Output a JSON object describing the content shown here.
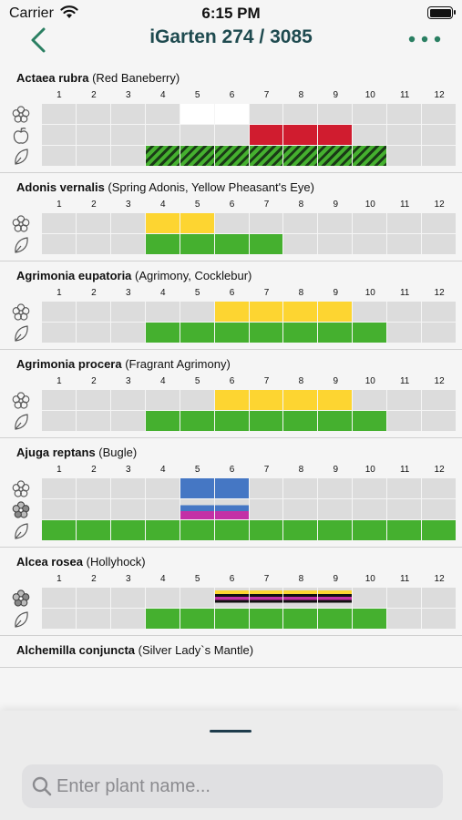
{
  "status_bar": {
    "carrier": "Carrier",
    "time": "6:15 PM"
  },
  "nav": {
    "title": "iGarten 274 / 3085"
  },
  "months": [
    "1",
    "2",
    "3",
    "4",
    "5",
    "6",
    "7",
    "8",
    "9",
    "10",
    "11",
    "12"
  ],
  "colors": {
    "accent": "#2a7f62",
    "title": "#1e4a4f",
    "cell_empty": "#dcdcdc",
    "red": "#d01c2f",
    "yellow": "#fdd531",
    "green": "#45b02f",
    "blue": "#4577c4",
    "magenta": "#c330a6"
  },
  "plants": [
    {
      "latin": "Actaea rubra",
      "common": " (Red Baneberry)",
      "rows": [
        {
          "icon": "flower-outline-icon",
          "cells": [
            "",
            "",
            "",
            "",
            "white",
            "white",
            "",
            "",
            "",
            "",
            "",
            ""
          ]
        },
        {
          "icon": "fruit-icon",
          "cells": [
            "",
            "",
            "",
            "",
            "",
            "",
            "red",
            "red",
            "red",
            "",
            "",
            ""
          ]
        },
        {
          "icon": "leaf-icon",
          "cells": [
            "",
            "",
            "",
            "hatch",
            "hatch",
            "hatch",
            "hatch",
            "hatch",
            "hatch",
            "hatch",
            "",
            ""
          ]
        }
      ]
    },
    {
      "latin": "Adonis vernalis",
      "common": " (Spring Adonis, Yellow Pheasant's Eye)",
      "rows": [
        {
          "icon": "flower-outline-icon",
          "cells": [
            "",
            "",
            "",
            "yellow",
            "yellow",
            "",
            "",
            "",
            "",
            "",
            "",
            ""
          ]
        },
        {
          "icon": "leaf-icon",
          "cells": [
            "",
            "",
            "",
            "green",
            "green",
            "green",
            "green",
            "",
            "",
            "",
            "",
            ""
          ]
        }
      ]
    },
    {
      "latin": "Agrimonia eupatoria",
      "common": " (Agrimony, Cocklebur)",
      "rows": [
        {
          "icon": "flower-outline-icon",
          "cells": [
            "",
            "",
            "",
            "",
            "",
            "yellow",
            "yellow",
            "yellow",
            "yellow",
            "",
            "",
            ""
          ]
        },
        {
          "icon": "leaf-icon",
          "cells": [
            "",
            "",
            "",
            "green",
            "green",
            "green",
            "green",
            "green",
            "green",
            "green",
            "",
            ""
          ]
        }
      ]
    },
    {
      "latin": "Agrimonia procera",
      "common": " (Fragrant Agrimony)",
      "rows": [
        {
          "icon": "flower-outline-icon",
          "cells": [
            "",
            "",
            "",
            "",
            "",
            "yellow",
            "yellow",
            "yellow",
            "yellow",
            "",
            "",
            ""
          ]
        },
        {
          "icon": "leaf-icon",
          "cells": [
            "",
            "",
            "",
            "green",
            "green",
            "green",
            "green",
            "green",
            "green",
            "green",
            "",
            ""
          ]
        }
      ]
    },
    {
      "latin": "Ajuga reptans",
      "common": " (Bugle)",
      "rows": [
        {
          "icon": "flower-outline-icon",
          "cells": [
            "",
            "",
            "",
            "",
            "blue",
            "blue",
            "",
            "",
            "",
            "",
            "",
            ""
          ]
        },
        {
          "icon": "flower-colored-icon",
          "cells": [
            "",
            "",
            "",
            "",
            "blueband",
            "blueband",
            "",
            "",
            "",
            "",
            "",
            ""
          ]
        },
        {
          "icon": "leaf-icon",
          "cells": [
            "green",
            "green",
            "green",
            "green",
            "green",
            "green",
            "green",
            "green",
            "green",
            "green",
            "green",
            "green"
          ]
        }
      ]
    },
    {
      "latin": "Alcea rosea",
      "common": " (Hollyhock)",
      "rows": [
        {
          "icon": "flower-colored-icon",
          "cells": [
            "",
            "",
            "",
            "",
            "",
            "mixband",
            "mixband",
            "mixband",
            "mixband",
            "",
            "",
            ""
          ]
        },
        {
          "icon": "leaf-icon",
          "cells": [
            "",
            "",
            "",
            "green",
            "green",
            "green",
            "green",
            "green",
            "green",
            "green",
            "",
            ""
          ]
        }
      ]
    },
    {
      "latin": "Alchemilla conjuncta",
      "common": " (Silver Lady`s Mantle)",
      "rows": []
    }
  ],
  "search": {
    "placeholder": "Enter plant name..."
  }
}
